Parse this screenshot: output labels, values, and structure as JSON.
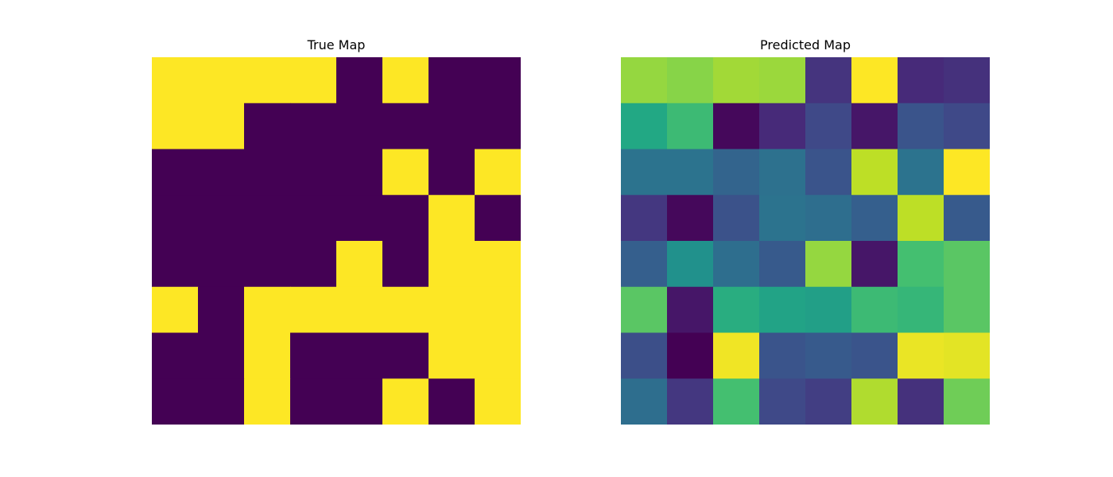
{
  "chart_data": [
    {
      "type": "heatmap",
      "title": "True Map",
      "colormap": "viridis",
      "vmin": 0,
      "vmax": 1,
      "grid": false,
      "axes_visible": false,
      "values": [
        [
          1,
          1,
          1,
          1,
          0,
          1,
          0,
          0
        ],
        [
          1,
          1,
          0,
          0,
          0,
          0,
          0,
          0
        ],
        [
          0,
          0,
          0,
          0,
          0,
          1,
          0,
          1
        ],
        [
          0,
          0,
          0,
          0,
          0,
          0,
          1,
          0
        ],
        [
          0,
          0,
          0,
          0,
          1,
          0,
          1,
          1
        ],
        [
          1,
          0,
          1,
          1,
          1,
          1,
          1,
          1
        ],
        [
          0,
          0,
          1,
          0,
          0,
          0,
          1,
          1
        ],
        [
          0,
          0,
          1,
          0,
          0,
          1,
          0,
          1
        ]
      ]
    },
    {
      "type": "heatmap",
      "title": "Predicted Map",
      "colormap": "viridis",
      "vmin": 0,
      "vmax": 1,
      "grid": false,
      "axes_visible": false,
      "values": [
        [
          0.84,
          0.82,
          0.86,
          0.85,
          0.15,
          1.0,
          0.12,
          0.14
        ],
        [
          0.6,
          0.68,
          0.02,
          0.12,
          0.22,
          0.06,
          0.26,
          0.22
        ],
        [
          0.38,
          0.38,
          0.32,
          0.37,
          0.26,
          0.9,
          0.38,
          1.0
        ],
        [
          0.16,
          0.02,
          0.25,
          0.38,
          0.36,
          0.3,
          0.9,
          0.28
        ],
        [
          0.3,
          0.5,
          0.36,
          0.28,
          0.84,
          0.06,
          0.7,
          0.74
        ],
        [
          0.74,
          0.06,
          0.62,
          0.58,
          0.56,
          0.68,
          0.66,
          0.74
        ],
        [
          0.24,
          0.0,
          0.98,
          0.26,
          0.28,
          0.26,
          0.97,
          0.96
        ],
        [
          0.36,
          0.16,
          0.7,
          0.22,
          0.18,
          0.88,
          0.14,
          0.78
        ]
      ]
    }
  ]
}
